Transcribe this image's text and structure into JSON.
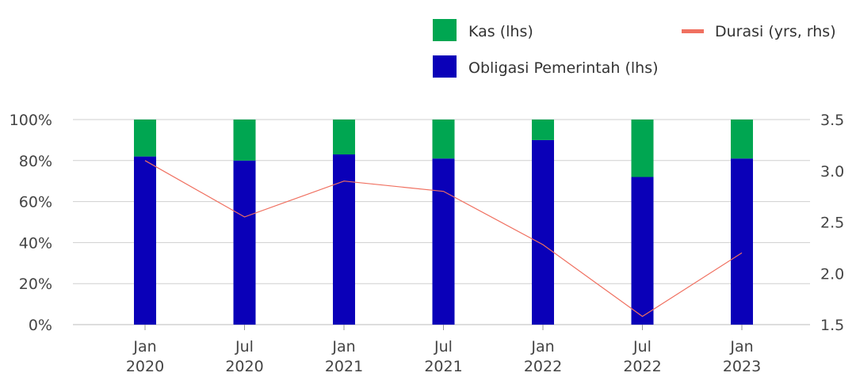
{
  "chart_data": {
    "type": "bar",
    "stacked": true,
    "categories": [
      [
        "Jan",
        "2020"
      ],
      [
        "Jul",
        "2020"
      ],
      [
        "Jan",
        "2021"
      ],
      [
        "Jul",
        "2021"
      ],
      [
        "Jan",
        "2022"
      ],
      [
        "Jul",
        "2022"
      ],
      [
        "Jan",
        "2023"
      ]
    ],
    "series": [
      {
        "name": "Obligasi Pemerintah (lhs)",
        "axis": "left",
        "type": "bar",
        "color": "#0a00b8",
        "values": [
          82,
          80,
          83,
          81,
          90,
          72,
          81
        ]
      },
      {
        "name": "Kas (lhs)",
        "axis": "left",
        "type": "bar",
        "color": "#00a651",
        "values": [
          18,
          20,
          17,
          19,
          10,
          28,
          19
        ]
      },
      {
        "name": "Durasi (yrs, rhs)",
        "axis": "right",
        "type": "line",
        "color": "#f07060",
        "values": [
          3.1,
          2.55,
          2.9,
          2.8,
          2.28,
          1.58,
          2.2
        ]
      }
    ],
    "y_left": {
      "ticks": [
        "0%",
        "20%",
        "40%",
        "60%",
        "80%",
        "100%"
      ],
      "ylim": [
        0,
        100
      ]
    },
    "y_right": {
      "ticks": [
        "1.5",
        "2.0",
        "2.5",
        "3.0",
        "3.5"
      ],
      "ylim": [
        1.5,
        3.5
      ]
    },
    "legend_placement": "top-right",
    "grid": true
  },
  "legend": [
    {
      "label": "Kas (lhs)",
      "color": "#00a651",
      "shape": "square"
    },
    {
      "label": "Durasi (yrs, rhs)",
      "color": "#f07060",
      "shape": "line"
    },
    {
      "label": "Obligasi Pemerintah (lhs)",
      "color": "#0a00b8",
      "shape": "square"
    }
  ]
}
